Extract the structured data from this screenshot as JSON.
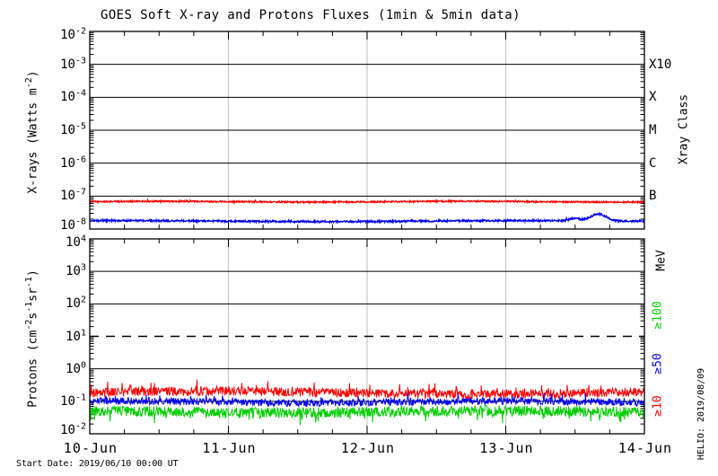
{
  "colors": {
    "background": "#ffffff",
    "axis": "#000000",
    "grid_gray": "#c9c9c9",
    "red": "#ff0000",
    "blue": "#0000ee",
    "green": "#00cc00"
  },
  "footer": {
    "start_date": "Start Date: 2019/06/10 00:00 UT"
  },
  "credit": "HELIO: 2019/08/09",
  "chart_data": [
    {
      "type": "line",
      "panel": "xray",
      "title": "GOES Soft X-ray and Protons Fluxes   (1min & 5min data)",
      "ylabel": "X-rays (Watts m^{-2})",
      "yticks": [
        "10^{-2}",
        "10^{-3}",
        "10^{-4}",
        "10^{-5}",
        "10^{-6}",
        "10^{-7}",
        "10^{-8}"
      ],
      "ytick_exps": [
        -2,
        -3,
        -4,
        -5,
        -6,
        -7,
        -8
      ],
      "ylim": [
        1e-08,
        0.01
      ],
      "grid_solid_exps": [
        -3,
        -4,
        -5,
        -6,
        -7
      ],
      "right_axis_title": "Xray Class",
      "right_labels": [
        {
          "label": "X10",
          "exp": -3
        },
        {
          "label": "X",
          "exp": -4
        },
        {
          "label": "M",
          "exp": -5
        },
        {
          "label": "C",
          "exp": -6
        },
        {
          "label": "B",
          "exp": -7
        }
      ],
      "x_range_days": 4,
      "series": [
        {
          "name": "xray-long-red",
          "color": "#ff0000",
          "approx_level": "6.5e-8",
          "base_log": -7.17,
          "noise_log": 0.022,
          "wander_amp": 0.012,
          "wander_freq": 2.9,
          "spike_prob": 0.02,
          "spike_log": 0.04,
          "points": 1400,
          "bumps": []
        },
        {
          "name": "xray-short-blue",
          "color": "#0000ee",
          "approx_level": "1.8e-8",
          "base_log": -7.76,
          "noise_log": 0.028,
          "wander_amp": 0.015,
          "wander_freq": 2.2,
          "spike_prob": 0.015,
          "spike_log": 0.05,
          "points": 1400,
          "bumps": [
            {
              "t": 3.67,
              "sigma": 0.055,
              "h": 0.21
            },
            {
              "t": 3.5,
              "sigma": 0.04,
              "h": 0.07
            }
          ]
        }
      ]
    },
    {
      "type": "line",
      "panel": "protons",
      "ylabel": "Protons (cm^{-2}s^{-1}sr^{-1})",
      "yticks": [
        "10^{4}",
        "10^{3}",
        "10^{2}",
        "10^{1}",
        "10^{0}",
        "10^{-1}",
        "10^{-2}"
      ],
      "ytick_exps": [
        4,
        3,
        2,
        1,
        0,
        -1,
        -2
      ],
      "ylim": [
        0.01,
        10000.0
      ],
      "grid_solid_exps": [
        3,
        2,
        0,
        -1
      ],
      "dashed_exp": 1,
      "right_axis_title": "MeV",
      "legend": [
        {
          "label": "≥100",
          "color": "#00cc00"
        },
        {
          "label": "≥50",
          "color": "#0000ee"
        },
        {
          "label": "≥10",
          "color": "#ff0000"
        }
      ],
      "xticklabels": [
        "10-Jun",
        "11-Jun",
        "12-Jun",
        "13-Jun",
        "14-Jun"
      ],
      "x_range_days": 4,
      "series": [
        {
          "name": "protons-ge10MeV-red",
          "color": "#ff0000",
          "approx_level": "0.18",
          "base_log": -0.74,
          "noise_log": 0.14,
          "wander_amp": 0.05,
          "wander_freq": 1.7,
          "spike_prob": 0.06,
          "spike_log": 0.28,
          "points": 1150,
          "bumps": []
        },
        {
          "name": "protons-ge50MeV-blue",
          "color": "#0000ee",
          "approx_level": "0.095",
          "base_log": -1.02,
          "noise_log": 0.11,
          "wander_amp": 0.03,
          "wander_freq": 2.3,
          "spike_prob": 0.05,
          "spike_log": 0.22,
          "points": 1150,
          "bumps": []
        },
        {
          "name": "protons-ge100MeV-green",
          "color": "#00cc00",
          "approx_level": "0.048",
          "base_log": -1.32,
          "noise_log": 0.16,
          "wander_amp": 0.03,
          "wander_freq": 2.0,
          "spike_prob": 0.06,
          "spike_log": -0.27,
          "points": 1150,
          "bumps": []
        }
      ]
    }
  ]
}
